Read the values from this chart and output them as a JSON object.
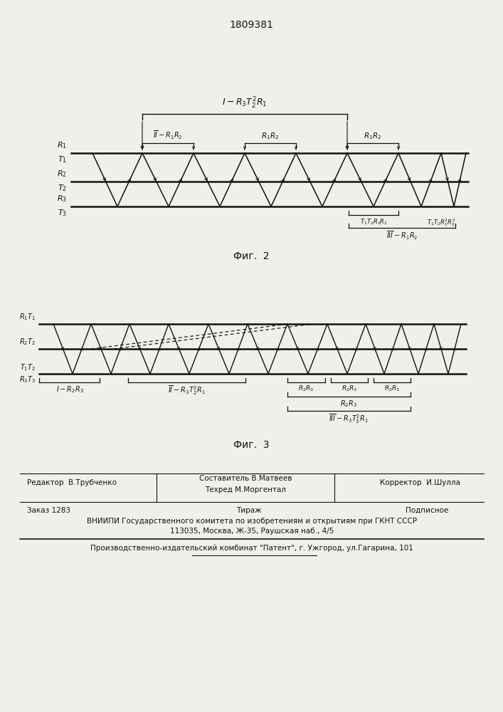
{
  "title": "1809381",
  "fig2_label": "Фиг.  2",
  "fig3_label": "Фиг.  3",
  "bg_color": "#f0f0ea",
  "line_color": "#111111",
  "footer": {
    "editor": "Редактор  В.Трубченко",
    "composer": "Составитель В.Матвеев",
    "techred": "Техред М.Моргентал",
    "corrector": "Корректор  И.Шулла",
    "order": "Заказ 1283",
    "tiraj": "Тираж",
    "podpisnoe": "Подписное",
    "vniipи": "ВНИИПИ Государственного комитета по изобретениям и открытиям при ГКНТ СССР",
    "address": "113035, Москва, Ж-35, Раушская наб., 4/5",
    "plant": "Производственно-издательский комбинат \"Патент\", г. Ужгород, ул.Гагарина, 101"
  }
}
